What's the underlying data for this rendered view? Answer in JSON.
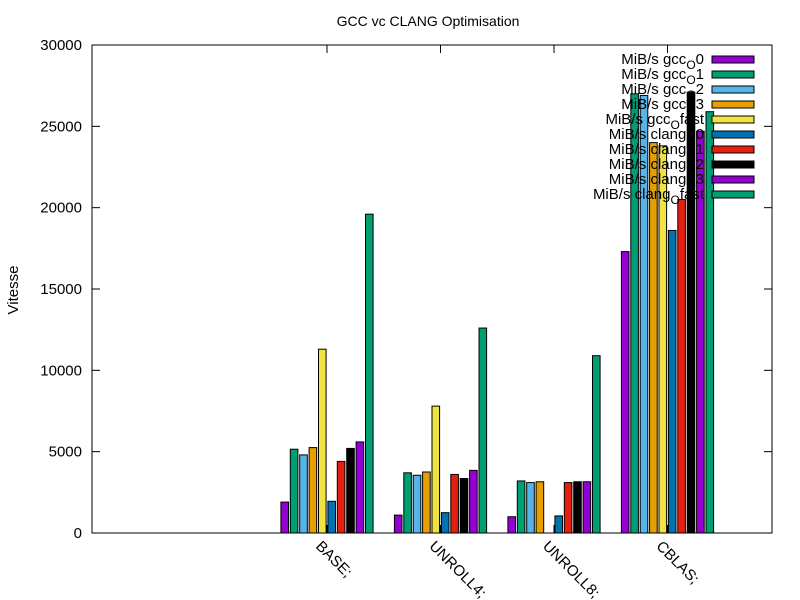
{
  "chart_data": {
    "type": "bar",
    "title": "GCC vc CLANG Optimisation",
    "xlabel": "",
    "ylabel": "Vitesse",
    "ylim": [
      0,
      30000
    ],
    "yticks": [
      0,
      5000,
      10000,
      15000,
      20000,
      25000,
      30000
    ],
    "categories": [
      "BASE;",
      "UNROLL4;",
      "UNROLL8;",
      "CBLAS;"
    ],
    "legend_position": "top-right",
    "grid": false,
    "series": [
      {
        "name": "MiB/s gcc_O0",
        "label_main": "MiB/s gcc",
        "label_sub": "O",
        "label_tail": "0",
        "color": "#9400d3",
        "values": [
          1900,
          1100,
          1000,
          17300
        ]
      },
      {
        "name": "MiB/s gcc_O1",
        "label_main": "MiB/s gcc",
        "label_sub": "O",
        "label_tail": "1",
        "color": "#009e73",
        "values": [
          5150,
          3700,
          3200,
          27000
        ]
      },
      {
        "name": "MiB/s gcc_O2",
        "label_main": "MiB/s gcc",
        "label_sub": "O",
        "label_tail": "2",
        "color": "#56b4e9",
        "values": [
          4800,
          3550,
          3100,
          26900
        ]
      },
      {
        "name": "MiB/s gcc_O3",
        "label_main": "MiB/s gcc",
        "label_sub": "O",
        "label_tail": "3",
        "color": "#e69f00",
        "values": [
          5250,
          3750,
          3150,
          24000
        ]
      },
      {
        "name": "MiB/s gcc_Ofast",
        "label_main": "MiB/s gcc",
        "label_sub": "O",
        "label_tail": "fast",
        "color": "#f0e442",
        "values": [
          11300,
          7800,
          0,
          23800
        ]
      },
      {
        "name": "MiB/s clang_O0",
        "label_main": "MiB/s clang",
        "label_sub": "O",
        "label_tail": "0",
        "color": "#0072b2",
        "values": [
          1950,
          1250,
          1050,
          18600
        ]
      },
      {
        "name": "MiB/s clang_O1",
        "label_main": "MiB/s clang",
        "label_sub": "O",
        "label_tail": "1",
        "color": "#e51e10",
        "values": [
          4400,
          3600,
          3100,
          20500
        ]
      },
      {
        "name": "MiB/s clang_O2",
        "label_main": "MiB/s clang",
        "label_sub": "O",
        "label_tail": "2",
        "color": "#000000",
        "values": [
          5200,
          3350,
          3150,
          27100
        ]
      },
      {
        "name": "MiB/s clang_O3",
        "label_main": "MiB/s clang",
        "label_sub": "O",
        "label_tail": "3",
        "color": "#9400d3",
        "values": [
          5600,
          3850,
          3150,
          24700
        ]
      },
      {
        "name": "MiB/s clang_Ofast",
        "label_main": "MiB/s clang",
        "label_sub": "O",
        "label_tail": "fast",
        "color": "#009e73",
        "values": [
          19600,
          12600,
          10900,
          25900
        ]
      }
    ]
  }
}
